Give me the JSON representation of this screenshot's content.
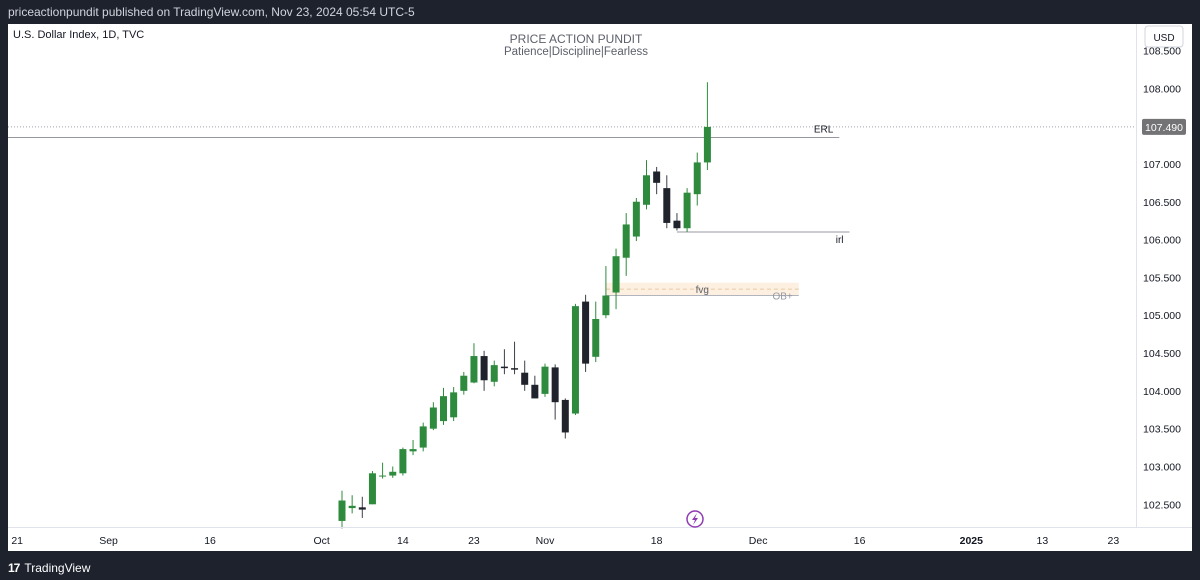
{
  "header": {
    "publisher_text": "priceactionpundit published on TradingView.com, Nov 23, 2024 05:54 UTC-5"
  },
  "footer": {
    "brand": "TradingView",
    "logo_glyph": "17"
  },
  "chart_data": {
    "type": "candlestick",
    "symbol": "U.S. Dollar Index, 1D, TVC",
    "title": "PRICE ACTION PUNDIT",
    "subtitle": "Patience|Discipline|Fearless",
    "currency_button": "USD",
    "price_axis": {
      "range": [
        102.2,
        108.85
      ],
      "ticks": [
        "108.500",
        "108.000",
        "107.000",
        "106.500",
        "106.000",
        "105.500",
        "105.000",
        "104.500",
        "104.000",
        "103.500",
        "103.000",
        "102.500"
      ],
      "tick_values": [
        108.5,
        108.0,
        107.0,
        106.5,
        106.0,
        105.5,
        105.0,
        104.5,
        104.0,
        103.5,
        103.0,
        102.5
      ],
      "last_price_label": "107.490",
      "last_price": 107.49
    },
    "time_axis": {
      "labels": [
        "21",
        "Sep",
        "16",
        "Oct",
        "14",
        "23",
        "Nov",
        "18",
        "Dec",
        "16",
        "2025",
        "13",
        "23"
      ],
      "label_bars": [
        -32,
        -23,
        -13,
        -2,
        6,
        13,
        20,
        31,
        41,
        51,
        62,
        69,
        76
      ],
      "bold": [
        "2025"
      ]
    },
    "candles": [
      {
        "o": 102.28,
        "h": 102.68,
        "l": 102.18,
        "c": 102.55
      },
      {
        "o": 102.45,
        "h": 102.62,
        "l": 102.38,
        "c": 102.48
      },
      {
        "o": 102.46,
        "h": 102.6,
        "l": 102.32,
        "c": 102.43
      },
      {
        "o": 102.5,
        "h": 102.94,
        "l": 102.5,
        "c": 102.91
      },
      {
        "o": 102.88,
        "h": 103.05,
        "l": 102.84,
        "c": 102.88
      },
      {
        "o": 102.88,
        "h": 103.0,
        "l": 102.85,
        "c": 102.93
      },
      {
        "o": 102.91,
        "h": 103.25,
        "l": 102.88,
        "c": 103.23
      },
      {
        "o": 103.2,
        "h": 103.35,
        "l": 103.15,
        "c": 103.23
      },
      {
        "o": 103.25,
        "h": 103.58,
        "l": 103.2,
        "c": 103.53
      },
      {
        "o": 103.5,
        "h": 103.85,
        "l": 103.48,
        "c": 103.78
      },
      {
        "o": 103.6,
        "h": 104.04,
        "l": 103.55,
        "c": 103.93
      },
      {
        "o": 103.65,
        "h": 104.05,
        "l": 103.6,
        "c": 103.98
      },
      {
        "o": 104.0,
        "h": 104.25,
        "l": 103.95,
        "c": 104.2
      },
      {
        "o": 104.11,
        "h": 104.63,
        "l": 104.1,
        "c": 104.46
      },
      {
        "o": 104.46,
        "h": 104.53,
        "l": 104.0,
        "c": 104.14
      },
      {
        "o": 104.12,
        "h": 104.4,
        "l": 104.06,
        "c": 104.34
      },
      {
        "o": 104.32,
        "h": 104.55,
        "l": 104.22,
        "c": 104.3
      },
      {
        "o": 104.3,
        "h": 104.65,
        "l": 104.22,
        "c": 104.28
      },
      {
        "o": 104.24,
        "h": 104.4,
        "l": 104.0,
        "c": 104.08
      },
      {
        "o": 104.08,
        "h": 104.2,
        "l": 103.9,
        "c": 103.9
      },
      {
        "o": 103.96,
        "h": 104.36,
        "l": 103.92,
        "c": 104.32
      },
      {
        "o": 104.31,
        "h": 104.35,
        "l": 103.62,
        "c": 103.85
      },
      {
        "o": 103.88,
        "h": 103.9,
        "l": 103.37,
        "c": 103.45
      },
      {
        "o": 103.7,
        "h": 105.15,
        "l": 103.68,
        "c": 105.12
      },
      {
        "o": 105.18,
        "h": 105.27,
        "l": 104.25,
        "c": 104.36
      },
      {
        "o": 104.45,
        "h": 105.18,
        "l": 104.38,
        "c": 104.95
      },
      {
        "o": 105.0,
        "h": 105.65,
        "l": 104.96,
        "c": 105.26
      },
      {
        "o": 105.3,
        "h": 105.88,
        "l": 105.08,
        "c": 105.78
      },
      {
        "o": 105.76,
        "h": 106.35,
        "l": 105.52,
        "c": 106.2
      },
      {
        "o": 106.04,
        "h": 106.55,
        "l": 105.98,
        "c": 106.5
      },
      {
        "o": 106.46,
        "h": 107.05,
        "l": 106.4,
        "c": 106.85
      },
      {
        "o": 106.9,
        "h": 106.96,
        "l": 106.6,
        "c": 106.75
      },
      {
        "o": 106.68,
        "h": 106.85,
        "l": 106.15,
        "c": 106.22
      },
      {
        "o": 106.25,
        "h": 106.35,
        "l": 106.12,
        "c": 106.15
      },
      {
        "o": 106.15,
        "h": 106.68,
        "l": 106.1,
        "c": 106.62
      },
      {
        "o": 106.6,
        "h": 107.15,
        "l": 106.45,
        "c": 107.02
      },
      {
        "o": 107.02,
        "h": 108.08,
        "l": 106.92,
        "c": 107.49
      }
    ],
    "annotations": [
      {
        "label": "ERL",
        "price": 107.35,
        "from_bar": -36,
        "to_bar": 49
      },
      {
        "label": "irl",
        "price": 106.1,
        "from_bar": 33,
        "to_bar": 50
      },
      {
        "label": "fvg",
        "zone": [
          105.26,
          105.43
        ],
        "from_bar": 26,
        "to_bar": 45
      },
      {
        "label": "OB+",
        "price": 105.26,
        "from_bar": 26,
        "to_bar": 45
      }
    ],
    "colors": {
      "up": "#2e8b3e",
      "down": "#20232b",
      "wick": "#3a3f48",
      "accent": "#8f3ab3",
      "price_label_bg": "#737375",
      "grid": "#e0e3eb"
    }
  }
}
